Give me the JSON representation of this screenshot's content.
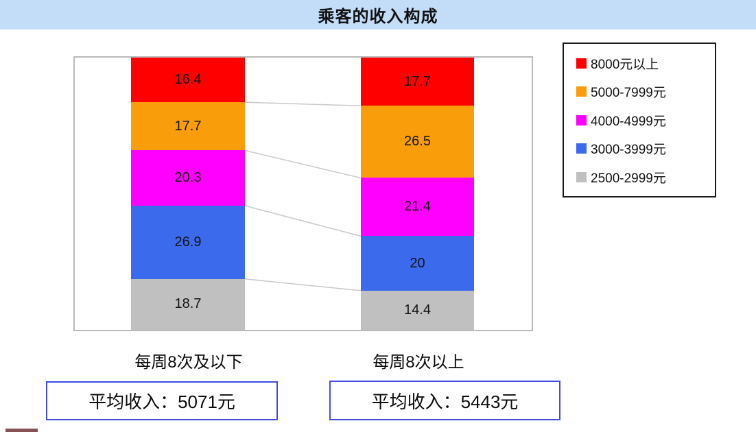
{
  "title": "乘客的收入构成",
  "chart_data": {
    "type": "bar",
    "subtype": "stacked-100-percent",
    "orientation": "vertical",
    "categories": [
      "每周8次及以下",
      "每周8次以上"
    ],
    "series": [
      {
        "name": "8000元以上",
        "color": "#FF0000",
        "values": [
          16.4,
          17.7
        ]
      },
      {
        "name": "5000-7999元",
        "color": "#FA9D0A",
        "values": [
          17.7,
          26.5
        ]
      },
      {
        "name": "4000-4999元",
        "color": "#FF00FF",
        "values": [
          20.3,
          21.4
        ]
      },
      {
        "name": "3000-3999元",
        "color": "#3B6AEC",
        "values": [
          26.9,
          20.0
        ]
      },
      {
        "name": "2500-2999元",
        "color": "#C0C0C0",
        "values": [
          18.7,
          14.4
        ]
      }
    ],
    "data_labels": [
      [
        "16.4",
        "17.7",
        "20.3",
        "26.9",
        "18.7"
      ],
      [
        "17.7",
        "26.5",
        "21.4",
        "20",
        "14.4"
      ]
    ],
    "ylim": [
      0,
      100
    ],
    "grid": false,
    "axes_visible": false,
    "legend_position": "right",
    "series_connector_lines": true
  },
  "annotations": {
    "left_avg": "平均收入：5071元",
    "right_avg": "平均收入：5443元"
  },
  "colors": {
    "banner_bg": "#C3DDF8",
    "plot_border": "#B9B9B9",
    "series_line": "#C9C9C9",
    "avg_box_border": "#444CDF",
    "legend_border": "#1A1A1A",
    "text": "#111111",
    "artifact": "#6E3434"
  }
}
